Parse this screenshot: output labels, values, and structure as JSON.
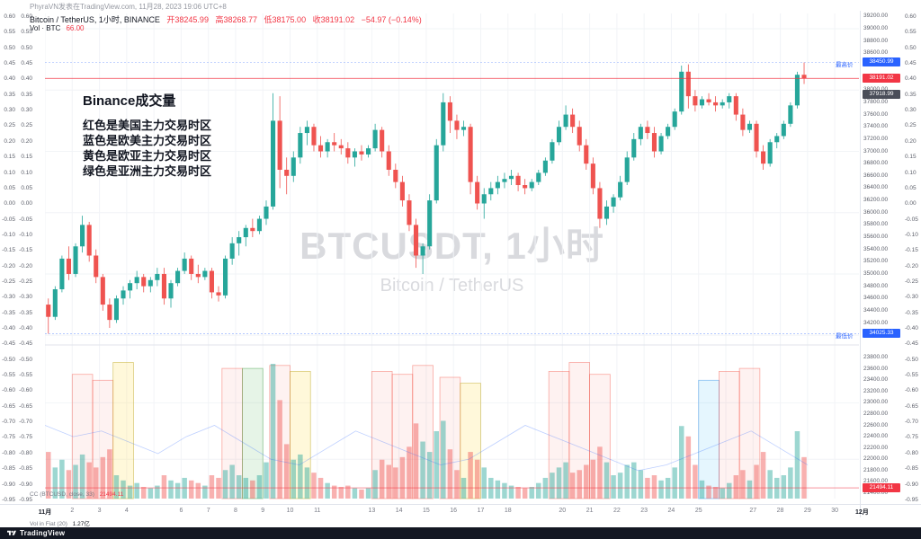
{
  "attribution": {
    "text": "PhyraVN发表在TradingView.com, 11月28, 2023 19:06 UTC+8"
  },
  "legend": {
    "title": "Bitcoin / TetherUS, 1小时, BINANCE",
    "open_text": "开38245.99",
    "high_text": "高38268.77",
    "low_text": "低38175.00",
    "close_text": "收38191.02",
    "change_text": "−54.97 (−0.14%)",
    "vol_label": "Vol · BTC",
    "vol_value": "66.00"
  },
  "annotation": {
    "title": "Binance成交量",
    "lines": [
      "红色是美国主力交易时区",
      "蓝色是欧美主力交易时区",
      "黄色是欧亚主力交易时区",
      "绿色是亚洲主力交易时区"
    ],
    "color": "#f0a000"
  },
  "watermark": {
    "title": "BTCUSDT, 1小时",
    "subtitle": "Bitcoin / TetherUS"
  },
  "pane2": {
    "legend": "CC (BTCUSD, close, 33)",
    "legend_value": "21494.11",
    "vol_fiat_label": "Vol in Fiat (20)",
    "vol_fiat_value": "1.27亿"
  },
  "price_labels": {
    "high_prefix": "最高价",
    "high": "38450.99",
    "last": "38191.02",
    "secondary": "37918.99",
    "low_prefix": "最低价",
    "low": "34025.33",
    "cc_last": "21494.11"
  },
  "footer": {
    "brand": "TradingView"
  },
  "axes": {
    "left_percent": [
      "0.60",
      "0.55",
      "0.50",
      "0.45",
      "0.40",
      "0.35",
      "0.30",
      "0.25",
      "0.20",
      "0.15",
      "0.10",
      "0.05",
      "0.00",
      "-0.05",
      "-0.10",
      "-0.15",
      "-0.20",
      "-0.25",
      "-0.30",
      "-0.35",
      "-0.40",
      "-0.45",
      "-0.50",
      "-0.55",
      "-0.60",
      "-0.65",
      "-0.70",
      "-0.75",
      "-0.80",
      "-0.85",
      "-0.90",
      "-0.95"
    ],
    "right_price": [
      "39200.00",
      "39000.00",
      "38800.00",
      "38600.00",
      "38400.00",
      "38200.00",
      "38000.00",
      "37800.00",
      "37600.00",
      "37400.00",
      "37200.00",
      "37000.00",
      "36800.00",
      "36600.00",
      "36400.00",
      "36200.00",
      "36000.00",
      "35800.00",
      "35600.00",
      "35400.00",
      "35200.00",
      "35000.00",
      "34800.00",
      "34600.00",
      "34400.00",
      "34200.00",
      "34000.00"
    ],
    "right_indicator": [
      "23800.00",
      "23600.00",
      "23400.00",
      "23200.00",
      "23000.00",
      "22800.00",
      "22600.00",
      "22400.00",
      "22200.00",
      "22000.00",
      "21800.00",
      "21600.00",
      "21400.00"
    ],
    "time": [
      {
        "text": "11月",
        "day": 0,
        "bold": true
      },
      {
        "text": "2",
        "day": 1
      },
      {
        "text": "3",
        "day": 2
      },
      {
        "text": "4",
        "day": 3
      },
      {
        "text": "6",
        "day": 5
      },
      {
        "text": "7",
        "day": 6
      },
      {
        "text": "8",
        "day": 7
      },
      {
        "text": "9",
        "day": 8
      },
      {
        "text": "10",
        "day": 9
      },
      {
        "text": "11",
        "day": 10
      },
      {
        "text": "13",
        "day": 12
      },
      {
        "text": "14",
        "day": 13
      },
      {
        "text": "15",
        "day": 14
      },
      {
        "text": "16",
        "day": 15
      },
      {
        "text": "17",
        "day": 16
      },
      {
        "text": "18",
        "day": 17
      },
      {
        "text": "20",
        "day": 19
      },
      {
        "text": "21",
        "day": 20
      },
      {
        "text": "22",
        "day": 21
      },
      {
        "text": "23",
        "day": 22
      },
      {
        "text": "24",
        "day": 23
      },
      {
        "text": "25",
        "day": 24
      },
      {
        "text": "27",
        "day": 26
      },
      {
        "text": "28",
        "day": 27
      },
      {
        "text": "29",
        "day": 28
      },
      {
        "text": "30",
        "day": 29
      },
      {
        "text": "12月",
        "day": 30,
        "bold": true
      }
    ]
  },
  "chart_data": {
    "type": "candlestick",
    "symbol": "BTCUSDT",
    "exchange": "BINANCE",
    "interval": "1小时",
    "title": "Bitcoin / TetherUS, 1小时, BINANCE",
    "price_range": {
      "min": 33900,
      "max": 39250
    },
    "indicator_range": {
      "min": 21400,
      "max": 23800
    },
    "last_price": 38191.02,
    "range_high": 38450.99,
    "range_low": 34025.33,
    "cc_last": 21494.11,
    "colors": {
      "up": "#26a69a",
      "down": "#ef5350",
      "vol_up": "rgba(38,166,154,0.45)",
      "vol_down": "rgba(239,83,80,0.45)",
      "accent_red": "#f23645",
      "accent_blue": "#2962ff"
    },
    "band_styles": {
      "pink": {
        "fill": "rgba(244,67,54,0.07)",
        "stroke": "rgba(244,67,54,0.45)"
      },
      "yellow": {
        "fill": "rgba(255,221,87,0.22)",
        "stroke": "rgba(190,165,30,0.55)"
      },
      "green": {
        "fill": "rgba(102,187,106,0.16)",
        "stroke": "rgba(67,160,71,0.55)"
      },
      "blue": {
        "fill": "rgba(41,182,246,0.12)",
        "stroke": "rgba(30,136,229,0.5)"
      }
    },
    "session_bands": [
      {
        "s": 4,
        "e": 7,
        "c": "pink",
        "t": 0.18
      },
      {
        "s": 7,
        "e": 10,
        "c": "pink",
        "t": 0.22
      },
      {
        "s": 10,
        "e": 13,
        "c": "yellow",
        "t": 0.1
      },
      {
        "s": 26,
        "e": 29,
        "c": "pink",
        "t": 0.14
      },
      {
        "s": 29,
        "e": 32,
        "c": "green",
        "t": 0.14
      },
      {
        "s": 33,
        "e": 36,
        "c": "pink",
        "t": 0.12
      },
      {
        "s": 36,
        "e": 39,
        "c": "yellow",
        "t": 0.16
      },
      {
        "s": 48,
        "e": 51,
        "c": "pink",
        "t": 0.16
      },
      {
        "s": 51,
        "e": 54,
        "c": "pink",
        "t": 0.18
      },
      {
        "s": 54,
        "e": 57,
        "c": "pink",
        "t": 0.12
      },
      {
        "s": 58,
        "e": 61,
        "c": "pink",
        "t": 0.2
      },
      {
        "s": 61,
        "e": 64,
        "c": "yellow",
        "t": 0.24
      },
      {
        "s": 74,
        "e": 77,
        "c": "pink",
        "t": 0.16
      },
      {
        "s": 77,
        "e": 80,
        "c": "pink",
        "t": 0.1
      },
      {
        "s": 80,
        "e": 83,
        "c": "pink",
        "t": 0.18
      },
      {
        "s": 96,
        "e": 99,
        "c": "blue",
        "t": 0.22
      },
      {
        "s": 99,
        "e": 102,
        "c": "pink",
        "t": 0.16
      },
      {
        "s": 102,
        "e": 105,
        "c": "pink",
        "t": 0.14
      }
    ],
    "cc_series": [
      22600,
      22400,
      22500,
      22300,
      22100,
      22400,
      22600,
      22300,
      22000,
      21900,
      22200,
      22500,
      22300,
      22100,
      21900,
      22000,
      22300,
      22600,
      22400,
      22200,
      22000,
      21800,
      21900,
      22100,
      22300,
      22500,
      22200,
      21900
    ],
    "candles": [
      [
        34500,
        34600,
        34025,
        34300,
        1800
      ],
      [
        34300,
        34800,
        34250,
        34750,
        1200
      ],
      [
        34750,
        35300,
        34700,
        35250,
        1500
      ],
      [
        35250,
        35450,
        34900,
        35000,
        1100
      ],
      [
        35000,
        35500,
        34950,
        35450,
        1300
      ],
      [
        35450,
        35950,
        35350,
        35800,
        1700
      ],
      [
        35800,
        35850,
        35200,
        35300,
        1400
      ],
      [
        35300,
        35400,
        34850,
        34950,
        1200
      ],
      [
        34950,
        35000,
        34400,
        34500,
        1600
      ],
      [
        34500,
        34600,
        34120,
        34250,
        1900
      ],
      [
        34250,
        34650,
        34200,
        34600,
        900
      ],
      [
        34600,
        34800,
        34500,
        34730,
        700
      ],
      [
        34730,
        34900,
        34600,
        34850,
        500
      ],
      [
        34850,
        35050,
        34750,
        34950,
        600
      ],
      [
        34950,
        35000,
        34700,
        34800,
        450
      ],
      [
        34800,
        34950,
        34700,
        34900,
        400
      ],
      [
        34900,
        35100,
        34800,
        35000,
        500
      ],
      [
        35000,
        35100,
        34500,
        34600,
        900
      ],
      [
        34600,
        34900,
        34450,
        34850,
        700
      ],
      [
        34850,
        35100,
        34800,
        35050,
        600
      ],
      [
        35050,
        35350,
        35000,
        35250,
        800
      ],
      [
        35250,
        35300,
        34900,
        35000,
        700
      ],
      [
        35000,
        35150,
        34850,
        34950,
        600
      ],
      [
        34950,
        35100,
        34900,
        35050,
        500
      ],
      [
        35050,
        35100,
        34600,
        34700,
        900
      ],
      [
        34700,
        34800,
        34550,
        34650,
        800
      ],
      [
        34650,
        35300,
        34600,
        35250,
        1100
      ],
      [
        35250,
        35600,
        35150,
        35500,
        1300
      ],
      [
        35500,
        35700,
        35300,
        35600,
        900
      ],
      [
        35600,
        35800,
        35450,
        35750,
        800
      ],
      [
        35750,
        35900,
        35600,
        35700,
        700
      ],
      [
        35700,
        35950,
        35650,
        35900,
        900
      ],
      [
        35900,
        36200,
        35800,
        36100,
        1400
      ],
      [
        36100,
        37950,
        36050,
        37500,
        5200
      ],
      [
        37500,
        37900,
        36400,
        36700,
        3800
      ],
      [
        36700,
        36900,
        36300,
        36600,
        2100
      ],
      [
        36600,
        37000,
        36500,
        36900,
        1500
      ],
      [
        36900,
        37400,
        36800,
        37300,
        1700
      ],
      [
        37300,
        37500,
        37100,
        37400,
        1200
      ],
      [
        37400,
        37450,
        37000,
        37100,
        1000
      ],
      [
        37100,
        37250,
        36900,
        37000,
        800
      ],
      [
        37000,
        37200,
        36900,
        37150,
        600
      ],
      [
        37150,
        37300,
        37000,
        37100,
        500
      ],
      [
        37100,
        37200,
        36950,
        37050,
        450
      ],
      [
        37050,
        37150,
        36800,
        36900,
        500
      ],
      [
        36900,
        37050,
        36750,
        37000,
        400
      ],
      [
        37000,
        37100,
        36850,
        36950,
        350
      ],
      [
        36950,
        37100,
        36900,
        37050,
        400
      ],
      [
        37050,
        37450,
        37000,
        37350,
        1100
      ],
      [
        37350,
        37400,
        36900,
        37000,
        1500
      ],
      [
        37000,
        37100,
        36600,
        36700,
        1300
      ],
      [
        36700,
        36800,
        36400,
        36500,
        1200
      ],
      [
        36500,
        36600,
        36100,
        36200,
        1600
      ],
      [
        36200,
        36300,
        35700,
        35800,
        2000
      ],
      [
        35800,
        35900,
        35100,
        35300,
        2900
      ],
      [
        35300,
        35500,
        35000,
        35450,
        2200
      ],
      [
        35450,
        36300,
        35400,
        36200,
        1800
      ],
      [
        36200,
        37200,
        36150,
        37100,
        2600
      ],
      [
        37100,
        37950,
        37000,
        37800,
        3000
      ],
      [
        37800,
        37900,
        37300,
        37500,
        1900
      ],
      [
        37500,
        37600,
        37200,
        37350,
        1100
      ],
      [
        37350,
        37500,
        37250,
        37400,
        800
      ],
      [
        37400,
        37450,
        36300,
        36500,
        1800
      ],
      [
        36500,
        36600,
        36050,
        36150,
        1500
      ],
      [
        36150,
        36400,
        35900,
        36300,
        1200
      ],
      [
        36300,
        36500,
        36200,
        36400,
        800
      ],
      [
        36400,
        36600,
        36300,
        36500,
        700
      ],
      [
        36500,
        36650,
        36400,
        36550,
        600
      ],
      [
        36550,
        36700,
        36450,
        36600,
        500
      ],
      [
        36600,
        36650,
        36350,
        36450,
        450
      ],
      [
        36450,
        36550,
        36300,
        36400,
        400
      ],
      [
        36400,
        36550,
        36350,
        36500,
        450
      ],
      [
        36500,
        36700,
        36450,
        36650,
        600
      ],
      [
        36650,
        36900,
        36600,
        36850,
        800
      ],
      [
        36850,
        37200,
        36800,
        37150,
        1000
      ],
      [
        37150,
        37500,
        37100,
        37400,
        1200
      ],
      [
        37400,
        37750,
        37350,
        37600,
        1400
      ],
      [
        37600,
        37700,
        37300,
        37400,
        1000
      ],
      [
        37400,
        37500,
        37000,
        37100,
        1100
      ],
      [
        37100,
        37200,
        36700,
        36800,
        1300
      ],
      [
        36800,
        36900,
        36300,
        36400,
        1500
      ],
      [
        36400,
        36500,
        35750,
        35900,
        2000
      ],
      [
        35900,
        36200,
        35800,
        36100,
        1400
      ],
      [
        36100,
        36300,
        36000,
        36250,
        900
      ],
      [
        36250,
        36600,
        36200,
        36500,
        1000
      ],
      [
        36500,
        37000,
        36450,
        36900,
        1300
      ],
      [
        36900,
        37300,
        36850,
        37200,
        1400
      ],
      [
        37200,
        37450,
        37100,
        37400,
        1100
      ],
      [
        37400,
        37500,
        37200,
        37300,
        800
      ],
      [
        37300,
        37400,
        36900,
        37000,
        900
      ],
      [
        37000,
        37300,
        36950,
        37250,
        700
      ],
      [
        37250,
        37450,
        37200,
        37400,
        800
      ],
      [
        37400,
        37700,
        37350,
        37650,
        1200
      ],
      [
        37650,
        38400,
        37600,
        38300,
        2800
      ],
      [
        38300,
        38420,
        37700,
        37900,
        2400
      ],
      [
        37900,
        38000,
        37650,
        37750,
        1300
      ],
      [
        37750,
        37900,
        37700,
        37850,
        700
      ],
      [
        37850,
        37950,
        37750,
        37800,
        500
      ],
      [
        37800,
        37900,
        37650,
        37750,
        450
      ],
      [
        37750,
        37850,
        37700,
        37800,
        400
      ],
      [
        37800,
        37950,
        37700,
        37900,
        600
      ],
      [
        37900,
        37950,
        37500,
        37600,
        900
      ],
      [
        37600,
        37700,
        37250,
        37350,
        1100
      ],
      [
        37350,
        37500,
        37300,
        37450,
        700
      ],
      [
        37450,
        37500,
        36900,
        37000,
        1300
      ],
      [
        37000,
        37100,
        36700,
        36800,
        1800
      ],
      [
        36800,
        37200,
        36750,
        37150,
        1100
      ],
      [
        37150,
        37300,
        37050,
        37250,
        800
      ],
      [
        37250,
        37500,
        37200,
        37450,
        900
      ],
      [
        37450,
        37800,
        37400,
        37750,
        1200
      ],
      [
        37750,
        38300,
        37700,
        38250,
        2600
      ],
      [
        38250,
        38450,
        38100,
        38191,
        1600
      ]
    ]
  }
}
